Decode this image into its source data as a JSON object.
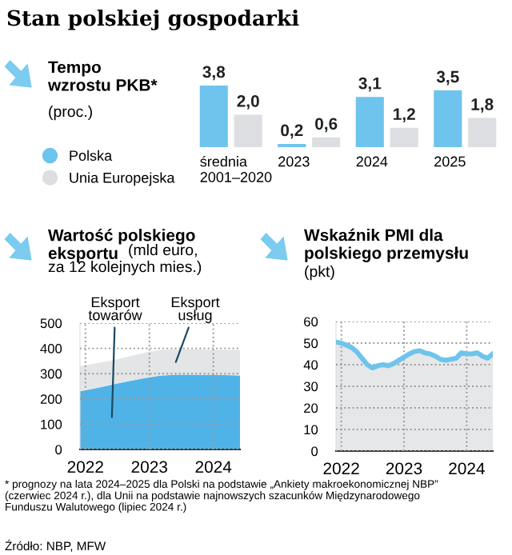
{
  "chart_data": [
    {
      "type": "bar",
      "title": "Stan polskiej gospodarki",
      "subtitle": "Tempo\nwzrostu PKB*",
      "ylabel": "(proc.)",
      "categories": [
        "średnia\n2001–2020",
        "2023",
        "2024",
        "2025"
      ],
      "series": [
        {
          "name": "Polska",
          "color": "#6ec4ec",
          "values": [
            3.8,
            0.2,
            3.1,
            3.5
          ],
          "value_labels": [
            "3,8",
            "0,2",
            "3,1",
            "3,5"
          ]
        },
        {
          "name": "Unia Europejska",
          "color": "#dcdee1",
          "values": [
            2.0,
            0.6,
            1.2,
            1.8
          ],
          "value_labels": [
            "2,0",
            "0,6",
            "1,2",
            "1,8"
          ]
        }
      ],
      "legend": "left",
      "annotations": [
        "* prognozy na lata 2024–2025 dla Polski na podstawie „Ankiety makroekonomicznej NBP”\n(czerwiec 2024 r.), dla Unii na podstawie najnowszych szacunków Międzynarodowego\nFunduszu Walutowego (lipiec 2024 r.)"
      ]
    },
    {
      "type": "area",
      "stacked": true,
      "title": "Wartość polskiego\neksportu",
      "subtitle": "(mld euro,\nza 12 kolejnych mies.)",
      "x": [
        "2021-12",
        "2022-03",
        "2022-06",
        "2022-09",
        "2022-12",
        "2023-03",
        "2023-06",
        "2023-09",
        "2023-12",
        "2024-03",
        "2024-06"
      ],
      "series": [
        {
          "name": "Eksport\ntowarów",
          "color": "#4fb3e8",
          "values": [
            230,
            242,
            256,
            270,
            282,
            292,
            296,
            296,
            295,
            294,
            293
          ]
        },
        {
          "name": "Eksport\nusług",
          "color": "#e4e5e7",
          "values": [
            100,
            98,
            96,
            97,
            100,
            102,
            100,
            100,
            100,
            100,
            101
          ]
        }
      ],
      "xlim": [
        "2021-12",
        "2024-06"
      ],
      "xticks": [
        {
          "value": "2022-01",
          "label": "2022"
        },
        {
          "value": "2023-01",
          "label": "2023"
        },
        {
          "value": "2024-01",
          "label": "2024"
        }
      ],
      "ylim": [
        0,
        500
      ],
      "yticks": [
        0,
        100,
        200,
        300,
        400,
        500
      ],
      "grid": true
    },
    {
      "type": "area",
      "title": "Wskaźnik PMI dla\npolskiego przemysłu",
      "subtitle": "(pkt)",
      "x": [
        "2021-12",
        "2022-01",
        "2022-02",
        "2022-03",
        "2022-04",
        "2022-05",
        "2022-06",
        "2022-07",
        "2022-08",
        "2022-09",
        "2022-10",
        "2022-11",
        "2022-12",
        "2023-01",
        "2023-02",
        "2023-03",
        "2023-04",
        "2023-05",
        "2023-06",
        "2023-07",
        "2023-08",
        "2023-09",
        "2023-10",
        "2023-11",
        "2023-12",
        "2024-01",
        "2024-02",
        "2024-03",
        "2024-04",
        "2024-05",
        "2024-06"
      ],
      "series": [
        {
          "color": "#6ec4ec",
          "values": [
            50.5,
            50,
            49,
            48,
            46,
            43,
            40,
            38.5,
            39.5,
            40,
            39.5,
            40.5,
            42,
            43.5,
            45,
            46,
            46.5,
            45.5,
            45,
            44,
            42.5,
            42,
            42.5,
            43,
            45.5,
            45,
            45,
            45.5,
            44,
            43,
            45
          ]
        }
      ],
      "xlim": [
        "2021-12",
        "2024-06"
      ],
      "xticks": [
        {
          "value": "2022-01",
          "label": "2022"
        },
        {
          "value": "2023-01",
          "label": "2023"
        },
        {
          "value": "2024-01",
          "label": "2024"
        }
      ],
      "ylim": [
        0,
        60
      ],
      "yticks": [
        0,
        10,
        20,
        30,
        40,
        50,
        60
      ],
      "grid": true,
      "annotations": [
        "Źródło: NBP, MFW"
      ]
    }
  ]
}
